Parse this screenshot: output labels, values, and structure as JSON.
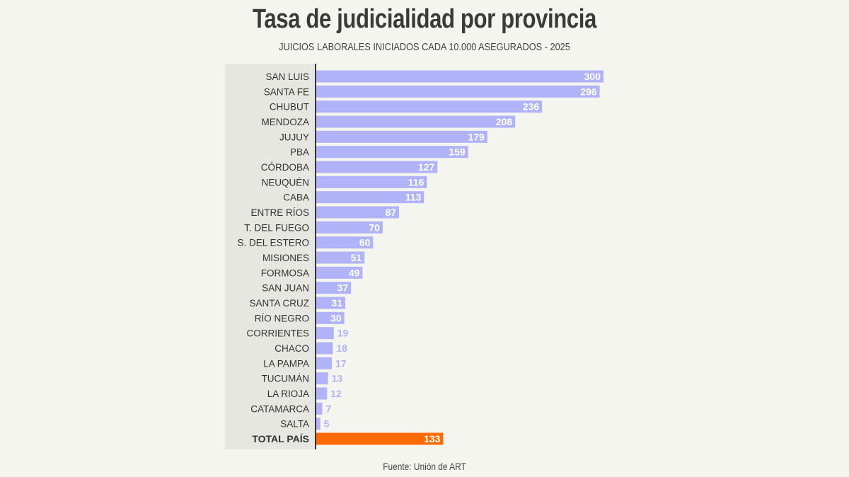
{
  "chart_data": {
    "type": "bar",
    "orientation": "horizontal",
    "title": "Tasa de judicialidad por provincia",
    "subtitle": "JUICIOS LABORALES INICIADOS CADA 10.000 ASEGURADOS - 2025",
    "source": "Fuente: Unión de ART",
    "categories": [
      "SAN LUIS",
      "SANTA FE",
      "CHUBUT",
      "MENDOZA",
      "JUJUY",
      "PBA",
      "CÓRDOBA",
      "NEUQUÉN",
      "CABA",
      "ENTRE RÍOS",
      "T. DEL FUEGO",
      "S. DEL ESTERO",
      "MISIONES",
      "FORMOSA",
      "SAN JUAN",
      "SANTA CRUZ",
      "RÍO NEGRO",
      "CORRIENTES",
      "CHACO",
      "LA PAMPA",
      "TUCUMÁN",
      "LA RIOJA",
      "CATAMARCA",
      "SALTA",
      "TOTAL PAÍS"
    ],
    "values": [
      300,
      296,
      236,
      208,
      179,
      159,
      127,
      116,
      113,
      87,
      70,
      60,
      51,
      49,
      37,
      31,
      30,
      19,
      18,
      17,
      13,
      12,
      7,
      5,
      133
    ],
    "xlim": [
      0,
      300
    ],
    "grid": false,
    "colors": {
      "bar": "#b1b3f8",
      "highlight": "#ff6a00",
      "outside_label": "#b1b3f8",
      "inside_label": "#ffffff"
    },
    "highlight_category": "TOTAL PAÍS"
  }
}
